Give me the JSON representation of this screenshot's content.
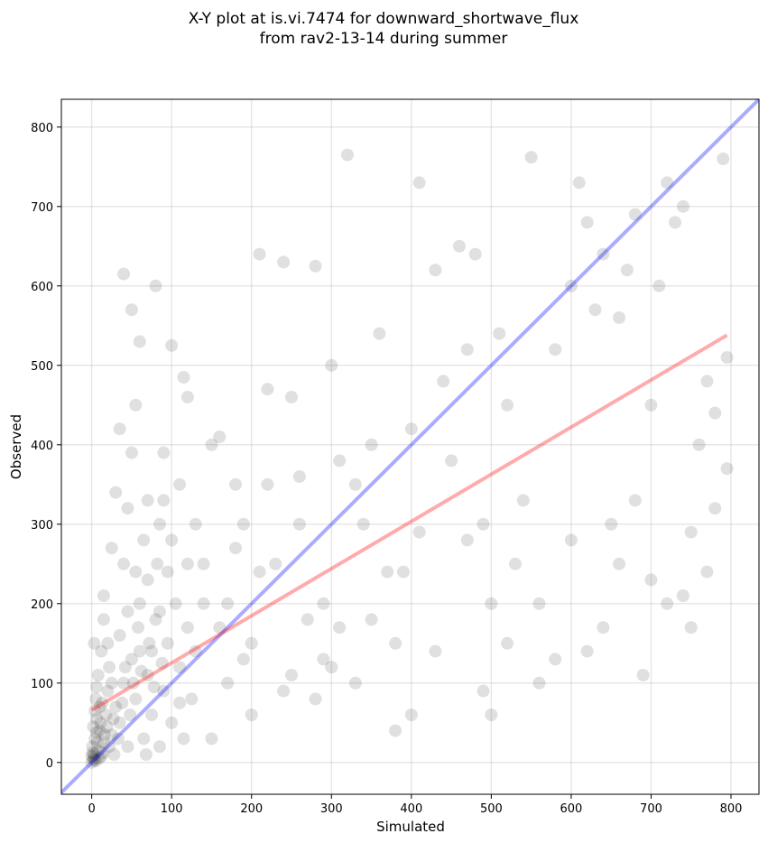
{
  "chart_data": {
    "type": "scatter",
    "title": [
      "X-Y plot at is.vi.7474 for downward_shortwave_flux",
      "from rav2-13-14 during summer"
    ],
    "x_label": "Simulated",
    "y_label": "Observed",
    "xlim": [
      -38,
      835
    ],
    "ylim": [
      -40,
      835
    ],
    "xticks": [
      0,
      100,
      200,
      300,
      400,
      500,
      600,
      700,
      800
    ],
    "yticks": [
      0,
      100,
      200,
      300,
      400,
      500,
      600,
      700,
      800
    ],
    "grid": true,
    "color": "#000000",
    "x": [
      0,
      2,
      3,
      5,
      1,
      4,
      8,
      10,
      6,
      12,
      15,
      18,
      20,
      5,
      8,
      12,
      3,
      25,
      30,
      22,
      28,
      35,
      40,
      45,
      50,
      55,
      60,
      65,
      70,
      75,
      80,
      85,
      90,
      95,
      100,
      105,
      110,
      115,
      120,
      125,
      15,
      25,
      30,
      40,
      45,
      50,
      55,
      60,
      40,
      80,
      50,
      35,
      65,
      70,
      85,
      90,
      100,
      115,
      120,
      110,
      130,
      140,
      150,
      160,
      170,
      180,
      190,
      200,
      210,
      240,
      280,
      220,
      250,
      260,
      230,
      270,
      290,
      300,
      310,
      320,
      330,
      350,
      360,
      380,
      390,
      400,
      410,
      430,
      440,
      460,
      470,
      480,
      490,
      500,
      510,
      520,
      530,
      550,
      560,
      580,
      600,
      610,
      620,
      630,
      640,
      650,
      660,
      670,
      680,
      690,
      700,
      710,
      720,
      730,
      740,
      750,
      760,
      770,
      780,
      790,
      795,
      795,
      780,
      770,
      750,
      740,
      720,
      700,
      680,
      660,
      640,
      620,
      600,
      580,
      560,
      540,
      520,
      500,
      490,
      470,
      450,
      430,
      410,
      400,
      380,
      370,
      350,
      340,
      330,
      310,
      300,
      290,
      280,
      260,
      250,
      240,
      220,
      210,
      200,
      190,
      180,
      170,
      160,
      150,
      140,
      130,
      120,
      110,
      100,
      95,
      90,
      85,
      75,
      70,
      60,
      55,
      45,
      35,
      25,
      20,
      15,
      10,
      6,
      2,
      1,
      3,
      7,
      9,
      11,
      14,
      16,
      19,
      4,
      0,
      6,
      13,
      22,
      27,
      33,
      38,
      42,
      48,
      52,
      58,
      62,
      68,
      72,
      78,
      82,
      88
    ],
    "values": [
      0,
      5,
      10,
      2,
      20,
      30,
      15,
      40,
      55,
      8,
      25,
      60,
      90,
      80,
      110,
      140,
      150,
      35,
      70,
      120,
      10,
      50,
      100,
      20,
      130,
      80,
      140,
      30,
      110,
      60,
      180,
      20,
      90,
      150,
      50,
      200,
      120,
      30,
      170,
      80,
      210,
      270,
      340,
      250,
      320,
      390,
      450,
      530,
      615,
      600,
      570,
      420,
      280,
      230,
      300,
      390,
      525,
      485,
      460,
      350,
      300,
      250,
      400,
      410,
      200,
      350,
      300,
      150,
      640,
      630,
      625,
      470,
      460,
      360,
      250,
      180,
      130,
      500,
      380,
      765,
      100,
      400,
      540,
      150,
      240,
      420,
      730,
      620,
      480,
      650,
      520,
      640,
      300,
      200,
      540,
      450,
      250,
      762,
      100,
      520,
      600,
      730,
      680,
      570,
      640,
      300,
      560,
      620,
      690,
      110,
      450,
      600,
      730,
      680,
      700,
      170,
      400,
      480,
      440,
      760,
      510,
      370,
      320,
      240,
      290,
      210,
      200,
      230,
      330,
      250,
      170,
      140,
      280,
      130,
      200,
      330,
      150,
      60,
      90,
      280,
      380,
      140,
      290,
      60,
      40,
      240,
      180,
      300,
      350,
      170,
      120,
      200,
      80,
      300,
      110,
      90,
      350,
      240,
      60,
      130,
      270,
      100,
      170,
      30,
      200,
      140,
      250,
      75,
      280,
      240,
      330,
      190,
      140,
      330,
      200,
      240,
      190,
      160,
      100,
      150,
      180,
      70,
      95,
      45,
      12,
      3,
      25,
      5,
      50,
      12,
      35,
      45,
      65,
      8,
      38,
      75,
      20,
      55,
      30,
      75,
      120,
      60,
      100,
      170,
      115,
      10,
      150,
      95,
      250,
      125
    ],
    "lines": [
      {
        "color": "#0000ff",
        "x": [
          -38,
          835
        ],
        "y": [
          -38,
          835
        ]
      },
      {
        "color": "#ff0000",
        "x": [
          0,
          795
        ],
        "y": [
          66,
          538
        ]
      }
    ]
  }
}
